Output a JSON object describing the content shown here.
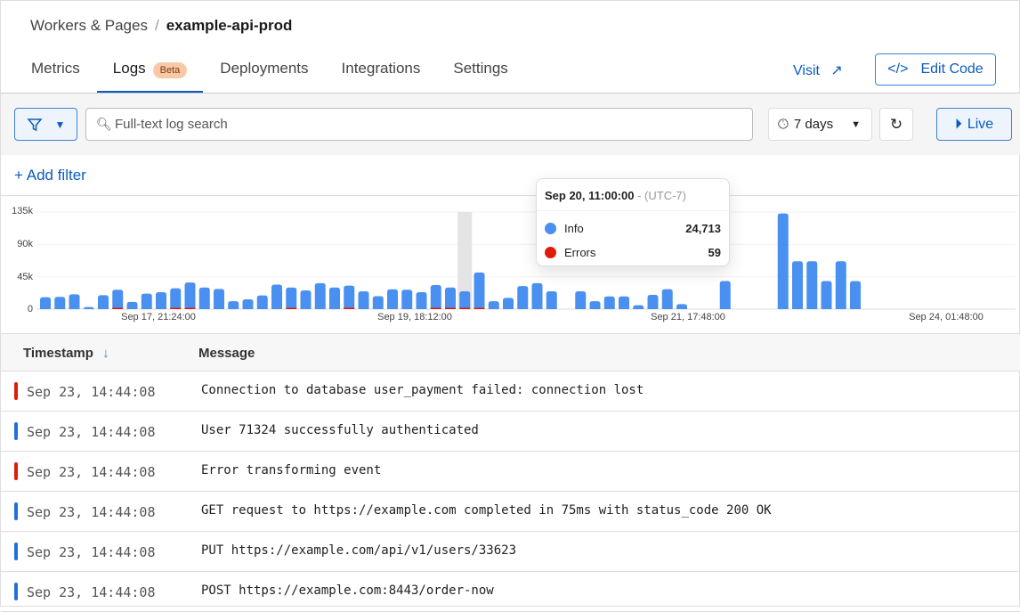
{
  "breadcrumb": {
    "parent": "Workers & Pages",
    "current": "example-api-prod"
  },
  "tabs": [
    {
      "label": "Metrics"
    },
    {
      "label": "Logs",
      "badge": "Beta",
      "active": true
    },
    {
      "label": "Deployments"
    },
    {
      "label": "Integrations"
    },
    {
      "label": "Settings"
    }
  ],
  "header": {
    "visit_label": "Visit",
    "edit_code_label": "Edit Code"
  },
  "toolbar": {
    "search_placeholder": "Full-text log search",
    "range_label": "7 days",
    "live_label": "Live",
    "add_filter_label": "Add filter"
  },
  "colors": {
    "accent": "#0b5cbd",
    "info": "#4a90f0",
    "error": "#e01b0b"
  },
  "chart_data": {
    "type": "bar",
    "ylim": [
      0,
      135000
    ],
    "yticks": [
      "0",
      "45k",
      "90k",
      "135k"
    ],
    "xticks": [
      "Sep 17, 21:24:00",
      "Sep 19, 18:12:00",
      "Sep 21, 17:48:00",
      "Sep 24, 01:48:00"
    ],
    "series": [
      {
        "name": "Info",
        "values": [
          16500,
          17000,
          20600,
          3000,
          19400,
          27000,
          10000,
          21500,
          23500,
          29000,
          37000,
          30000,
          28000,
          11000,
          13600,
          19000,
          34000,
          30000,
          26000,
          36000,
          30000,
          32600,
          24800,
          18000,
          27600,
          27000,
          23500,
          33500,
          30000,
          24713,
          51000,
          11000,
          15700,
          32000,
          36000,
          24700,
          0,
          24700,
          11000,
          17700,
          17700,
          5400,
          19800,
          27700,
          7000,
          0,
          0,
          39000,
          0,
          0,
          0,
          133000,
          66500,
          66500,
          39000,
          66500,
          39000
        ]
      },
      {
        "name": "Errors",
        "values": [
          0,
          0,
          0,
          0,
          0,
          900,
          0,
          0,
          0,
          900,
          900,
          0,
          0,
          0,
          0,
          0,
          0,
          900,
          0,
          0,
          0,
          900,
          0,
          0,
          0,
          0,
          0,
          900,
          900,
          59,
          1200,
          0,
          0,
          0,
          0,
          0,
          0,
          0,
          0,
          0,
          0,
          0,
          0,
          0,
          0,
          0,
          0,
          0,
          0,
          0,
          0,
          0,
          0,
          0,
          0,
          0,
          0
        ]
      }
    ],
    "highlight": "Sep 20, 11:00:00"
  },
  "tooltip": {
    "time": "Sep 20, 11:00:00",
    "tz": "- (UTC-7)",
    "items": [
      {
        "label": "Info",
        "value": "24,713"
      },
      {
        "label": "Errors",
        "value": "59"
      }
    ]
  },
  "table": {
    "columns": [
      "Timestamp",
      "Message"
    ],
    "rows": [
      {
        "level": "error",
        "timestamp": "Sep 23, 14:44:08",
        "message": "Connection to database user_payment failed: connection lost"
      },
      {
        "level": "info",
        "timestamp": "Sep 23, 14:44:08",
        "message": "User 71324 successfully authenticated"
      },
      {
        "level": "error",
        "timestamp": "Sep 23, 14:44:08",
        "message": "Error transforming event"
      },
      {
        "level": "info",
        "timestamp": "Sep 23, 14:44:08",
        "message": "GET request to https://example.com completed in 75ms with status_code 200 OK"
      },
      {
        "level": "info",
        "timestamp": "Sep 23, 14:44:08",
        "message": "PUT https://example.com/api/v1/users/33623"
      },
      {
        "level": "info",
        "timestamp": "Sep 23, 14:44:08",
        "message": "POST https://example.com:8443/order-now"
      }
    ]
  }
}
